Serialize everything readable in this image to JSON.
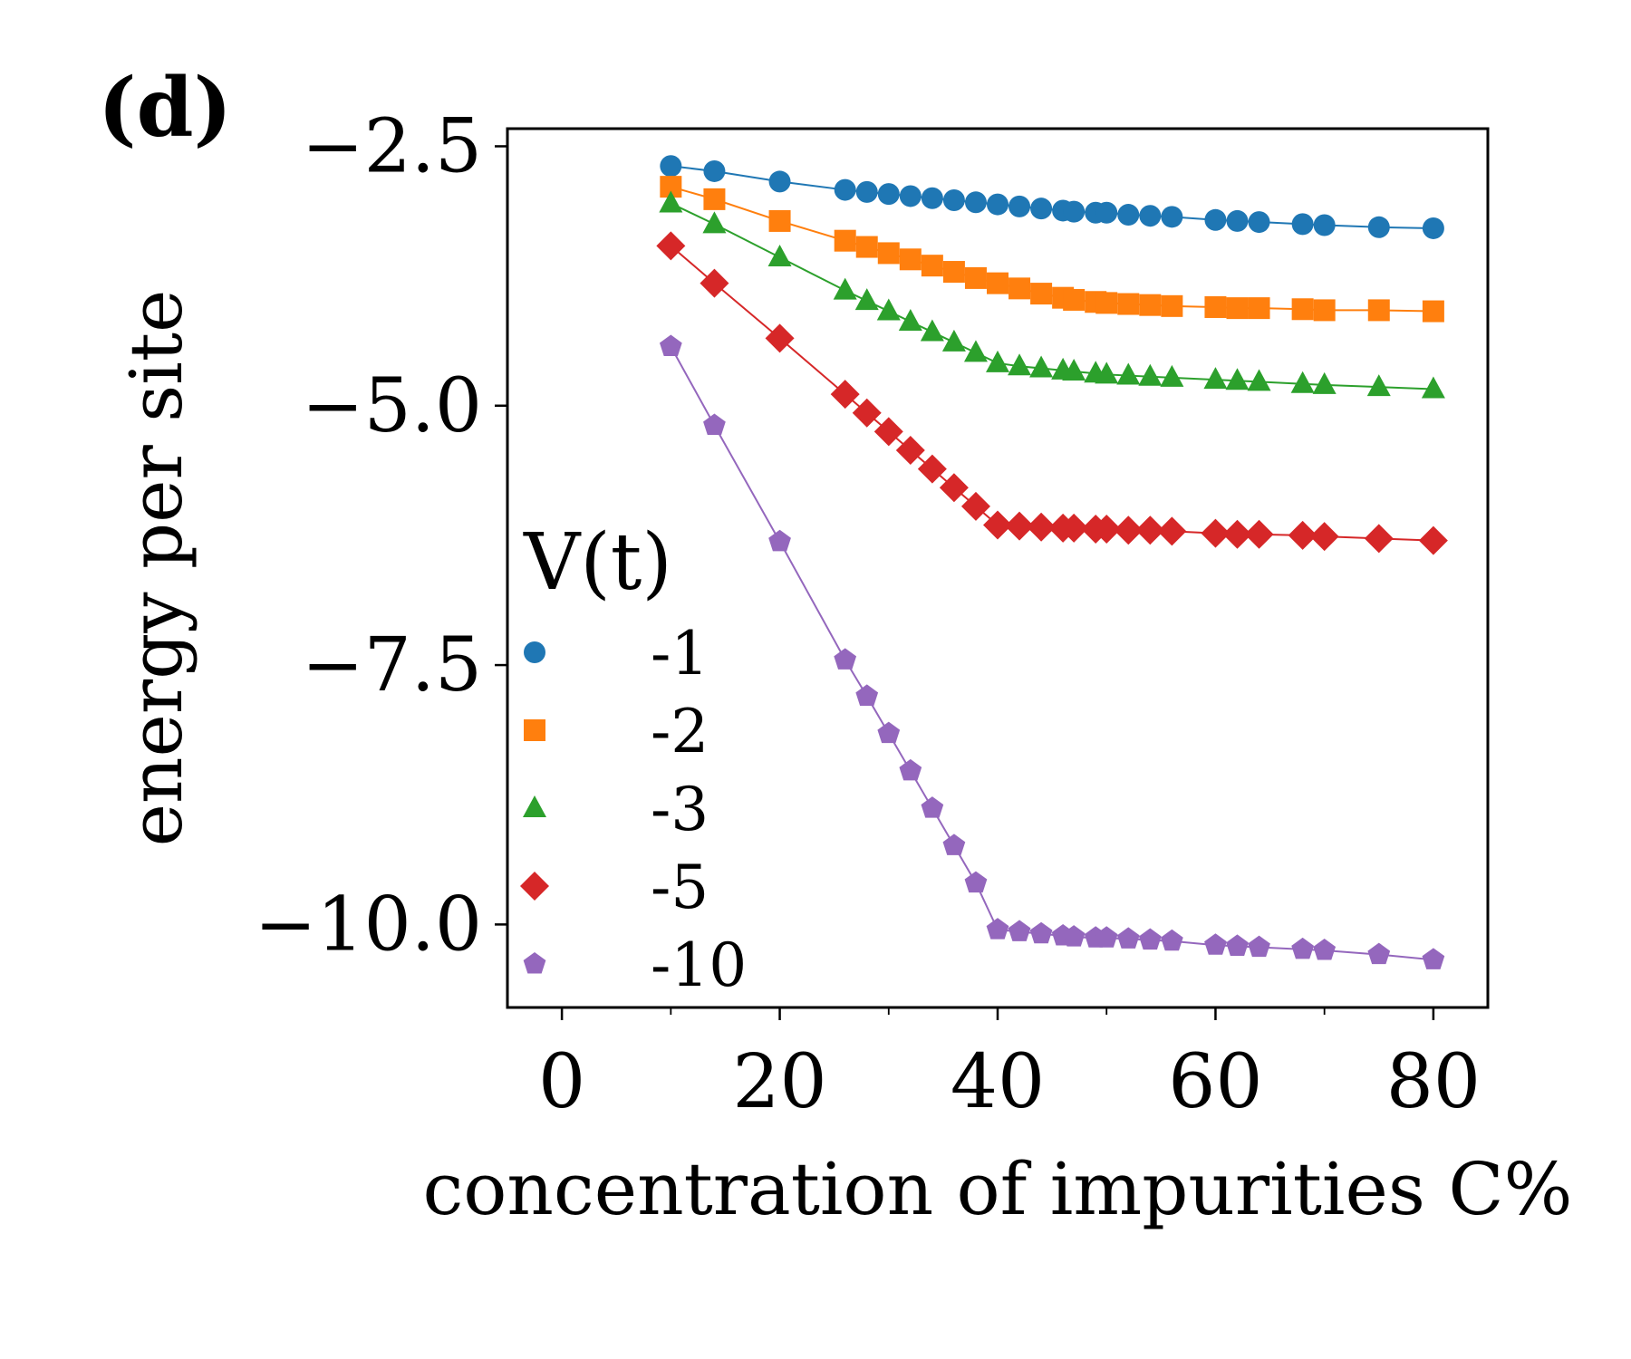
{
  "panel_label": "(d)",
  "chart_data": {
    "type": "line",
    "title": "",
    "xlabel": "concentration of impurities C%",
    "ylabel": "energy per site",
    "xlim": [
      -5,
      85
    ],
    "ylim": [
      -10.8,
      -2.33
    ],
    "xticks": [
      0,
      20,
      40,
      60,
      80
    ],
    "xtick_labels": [
      "0",
      "20",
      "40",
      "60",
      "80"
    ],
    "yticks": [
      -2.5,
      -5.0,
      -7.5,
      -10.0
    ],
    "ytick_labels": [
      "−2.5",
      "−5.0",
      "−7.5",
      "−10.0"
    ],
    "legend": {
      "title": "V(t)",
      "position": "lower-left"
    },
    "x": [
      10,
      14,
      20,
      26,
      28,
      30,
      32,
      34,
      36,
      38,
      40,
      42,
      44,
      46,
      47,
      49,
      50,
      52,
      54,
      56,
      60,
      62,
      64,
      68,
      70,
      75,
      80
    ],
    "series": [
      {
        "name": "-1",
        "color": "#1f77b4",
        "marker": "circle",
        "values": [
          -2.69,
          -2.74,
          -2.84,
          -2.92,
          -2.94,
          -2.96,
          -2.98,
          -3.0,
          -3.02,
          -3.04,
          -3.06,
          -3.08,
          -3.1,
          -3.12,
          -3.13,
          -3.14,
          -3.14,
          -3.16,
          -3.17,
          -3.18,
          -3.21,
          -3.22,
          -3.23,
          -3.25,
          -3.26,
          -3.28,
          -3.29
        ]
      },
      {
        "name": "-2",
        "color": "#ff7f0e",
        "marker": "square",
        "values": [
          -2.89,
          -3.01,
          -3.22,
          -3.41,
          -3.47,
          -3.53,
          -3.59,
          -3.65,
          -3.71,
          -3.77,
          -3.82,
          -3.87,
          -3.92,
          -3.96,
          -3.98,
          -4.0,
          -4.01,
          -4.02,
          -4.03,
          -4.04,
          -4.05,
          -4.06,
          -4.06,
          -4.07,
          -4.08,
          -4.08,
          -4.09
        ]
      },
      {
        "name": "-3",
        "color": "#2ca02c",
        "marker": "triangle",
        "values": [
          -3.05,
          -3.25,
          -3.57,
          -3.89,
          -3.99,
          -4.09,
          -4.19,
          -4.29,
          -4.39,
          -4.49,
          -4.59,
          -4.62,
          -4.64,
          -4.66,
          -4.67,
          -4.69,
          -4.7,
          -4.71,
          -4.72,
          -4.73,
          -4.75,
          -4.76,
          -4.77,
          -4.79,
          -4.8,
          -4.82,
          -4.84
        ]
      },
      {
        "name": "-5",
        "color": "#d62728",
        "marker": "diamond",
        "values": [
          -3.46,
          -3.82,
          -4.35,
          -4.89,
          -5.07,
          -5.25,
          -5.43,
          -5.61,
          -5.79,
          -5.97,
          -6.15,
          -6.16,
          -6.17,
          -6.18,
          -6.18,
          -6.19,
          -6.19,
          -6.2,
          -6.2,
          -6.21,
          -6.23,
          -6.24,
          -6.24,
          -6.25,
          -6.26,
          -6.28,
          -6.3
        ]
      },
      {
        "name": "-10",
        "color": "#9467bd",
        "marker": "pentagon",
        "values": [
          -4.43,
          -5.19,
          -6.31,
          -7.45,
          -7.8,
          -8.16,
          -8.52,
          -8.88,
          -9.24,
          -9.6,
          -10.05,
          -10.07,
          -10.09,
          -10.11,
          -10.12,
          -10.13,
          -10.13,
          -10.14,
          -10.15,
          -10.16,
          -10.2,
          -10.21,
          -10.22,
          -10.24,
          -10.25,
          -10.29,
          -10.34
        ]
      }
    ]
  }
}
